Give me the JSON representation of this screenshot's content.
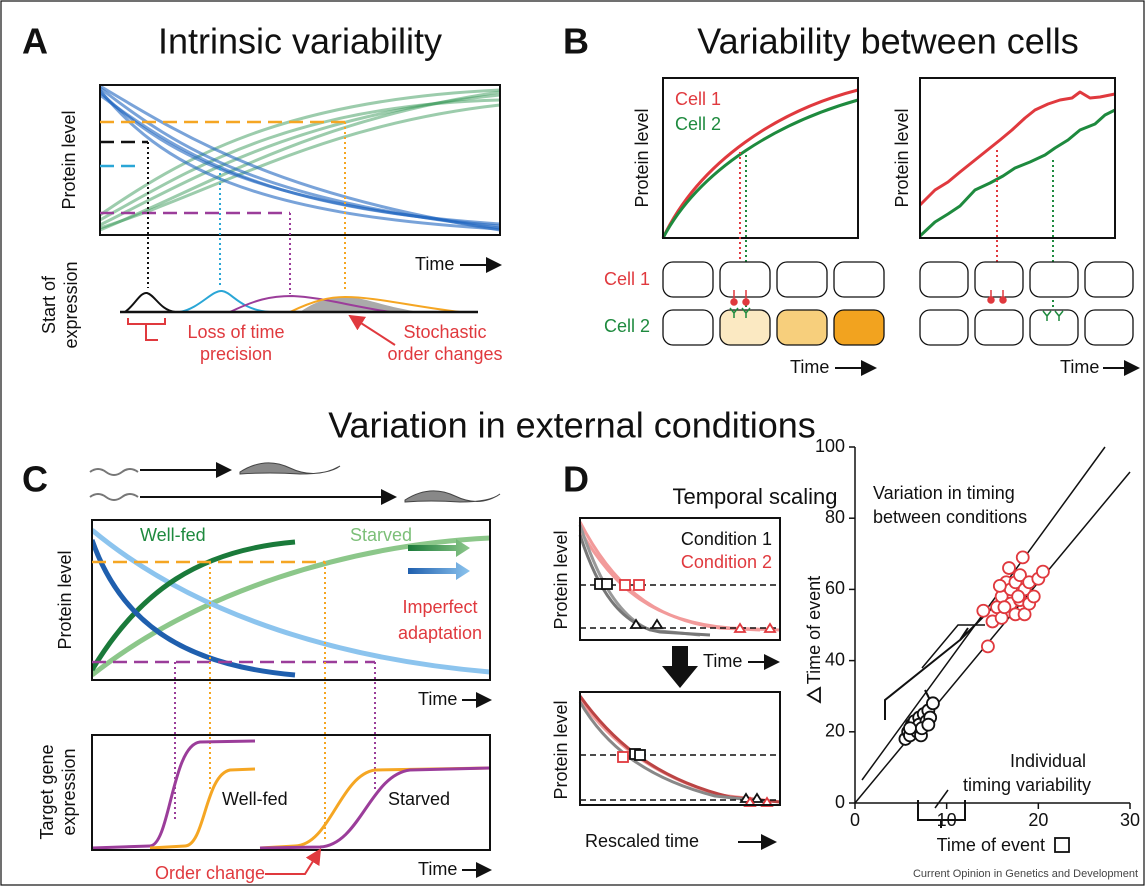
{
  "panel_a": {
    "letter": "A",
    "title": "Intrinsic variability",
    "y_label": "Protein level",
    "x_label": "Time",
    "lower_label": [
      "Start of",
      "expression"
    ],
    "annotations": [
      [
        "Loss of time",
        "precision"
      ],
      [
        "Stochastic",
        "order changes"
      ]
    ]
  },
  "panel_b": {
    "letter": "B",
    "title": "Variability between cells",
    "legend": [
      "Cell 1",
      "Cell 2"
    ],
    "y_label": [
      "Protein level",
      "Protein level"
    ],
    "rows": [
      "Cell 1",
      "Cell 2"
    ],
    "x_label": [
      "Time",
      "Time"
    ]
  },
  "section_title": "Variation in external conditions",
  "panel_c": {
    "letter": "C",
    "series": [
      "Well-fed",
      "Starved"
    ],
    "annotation": [
      "Imperfect",
      "adaptation"
    ],
    "y_label": "Protein level",
    "x_label": [
      "Time",
      "Time"
    ],
    "lower_series": [
      "Well-fed",
      "Starved"
    ],
    "lower_y_label": [
      "Target gene",
      "expression"
    ],
    "lower_annotation": "Order change"
  },
  "panel_d": {
    "letter": "D",
    "title": "Temporal scaling",
    "legend": [
      "Condition 1",
      "Condition 2"
    ],
    "y_label": [
      "Protein level",
      "Protein level"
    ],
    "x_label": [
      "Time",
      "Rescaled time"
    ],
    "scatter": {
      "y_label": "Time of event",
      "x_label": "Time of event",
      "xlim": [
        0,
        30
      ],
      "ylim": [
        0,
        100
      ],
      "xticks": [
        0,
        10,
        20,
        30
      ],
      "yticks": [
        0,
        20,
        40,
        60,
        80,
        100
      ],
      "annotations": [
        [
          "Variation in timing",
          "between conditions"
        ],
        [
          "Individual",
          "timing variability"
        ]
      ],
      "series": [
        {
          "color": "#111111",
          "x": [
            5.5,
            5.8,
            6,
            6.2,
            6.5,
            6.5,
            6.8,
            7,
            7,
            7.2,
            7.5,
            7.8,
            8,
            8.2,
            8.5,
            6,
            7.3,
            8
          ],
          "y": [
            18,
            20,
            19,
            22,
            21,
            23,
            20,
            24,
            22,
            19,
            25,
            23,
            26,
            24,
            28,
            21,
            21,
            22
          ]
        },
        {
          "color": "#e0393e",
          "x": [
            14.5,
            14,
            15,
            15.5,
            16,
            16,
            16.5,
            16.8,
            17,
            17,
            17.5,
            17.5,
            18,
            18,
            18.3,
            18.5,
            18.5,
            19,
            19,
            19.5,
            20,
            20.5,
            16.3,
            17.8,
            15.8
          ],
          "y": [
            44,
            54,
            51,
            55,
            52,
            58,
            62,
            66,
            56,
            60,
            53,
            62,
            57,
            64,
            69,
            53,
            60,
            56,
            62,
            58,
            63,
            65,
            55,
            58,
            61
          ]
        }
      ]
    }
  },
  "footer": "Current Opinion in Genetics and Development"
}
